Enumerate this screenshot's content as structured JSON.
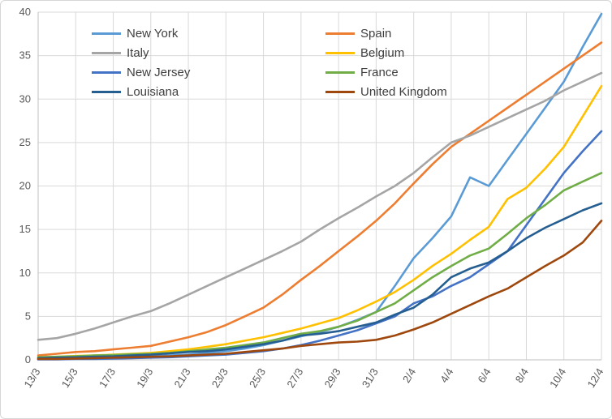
{
  "chart_data": {
    "type": "line",
    "title": "",
    "xlabel": "",
    "ylabel": "",
    "ylim": [
      0,
      40
    ],
    "y_ticks": [
      0,
      5,
      10,
      15,
      20,
      25,
      30,
      35,
      40
    ],
    "grid": true,
    "legend_position": "top-inside-two-columns",
    "x": [
      "13/3",
      "14/3",
      "15/3",
      "16/3",
      "17/3",
      "18/3",
      "19/3",
      "20/3",
      "21/3",
      "22/3",
      "23/3",
      "24/3",
      "25/3",
      "26/3",
      "27/3",
      "28/3",
      "29/3",
      "30/3",
      "31/3",
      "1/4",
      "2/4",
      "3/4",
      "4/4",
      "5/4",
      "6/4",
      "7/4",
      "8/4",
      "9/4",
      "10/4",
      "11/4",
      "12/4"
    ],
    "x_tick_every": 2,
    "x_tick_labels": [
      "13/3",
      "15/3",
      "17/3",
      "19/3",
      "21/3",
      "23/3",
      "25/3",
      "27/3",
      "29/3",
      "31/3",
      "2/4",
      "4/4",
      "6/4",
      "8/4",
      "10/4",
      "12/4"
    ],
    "series": [
      {
        "name": "New York",
        "color": "#5B9BD5",
        "values": [
          0.1,
          0.1,
          0.2,
          0.2,
          0.3,
          0.3,
          0.4,
          0.5,
          0.6,
          0.8,
          1.0,
          1.3,
          1.7,
          2.2,
          2.7,
          3.2,
          3.8,
          4.6,
          5.5,
          8.5,
          11.7,
          14.0,
          16.5,
          21.0,
          20.0,
          23.0,
          26.0,
          29.0,
          32.0,
          36.0,
          39.8
        ]
      },
      {
        "name": "Spain",
        "color": "#ED7D31",
        "values": [
          0.5,
          0.7,
          0.9,
          1.0,
          1.2,
          1.4,
          1.6,
          2.1,
          2.6,
          3.2,
          4.0,
          5.0,
          6.0,
          7.5,
          9.2,
          10.8,
          12.5,
          14.2,
          16.0,
          18.0,
          20.3,
          22.5,
          24.5,
          26.0,
          27.5,
          29.0,
          30.5,
          32.0,
          33.5,
          35.0,
          36.5
        ]
      },
      {
        "name": "Italy",
        "color": "#A5A5A5",
        "values": [
          2.3,
          2.5,
          3.0,
          3.6,
          4.3,
          5.0,
          5.6,
          6.5,
          7.5,
          8.5,
          9.5,
          10.5,
          11.5,
          12.5,
          13.6,
          15.0,
          16.3,
          17.5,
          18.8,
          20.0,
          21.5,
          23.3,
          25.0,
          25.8,
          26.8,
          27.8,
          28.8,
          29.8,
          31.0,
          32.0,
          33.0
        ]
      },
      {
        "name": "Belgium",
        "color": "#FFC000",
        "values": [
          0.3,
          0.35,
          0.45,
          0.5,
          0.6,
          0.7,
          0.8,
          1.0,
          1.2,
          1.5,
          1.8,
          2.2,
          2.6,
          3.1,
          3.6,
          4.2,
          4.8,
          5.7,
          6.7,
          7.8,
          9.2,
          10.8,
          12.2,
          13.8,
          15.3,
          18.5,
          19.8,
          22.0,
          24.5,
          28.0,
          31.5
        ]
      },
      {
        "name": "New Jersey",
        "color": "#4472C4",
        "values": [
          0.05,
          0.05,
          0.1,
          0.1,
          0.15,
          0.2,
          0.25,
          0.3,
          0.4,
          0.5,
          0.6,
          0.8,
          1.0,
          1.3,
          1.7,
          2.2,
          2.8,
          3.4,
          4.2,
          5.0,
          6.5,
          7.3,
          8.5,
          9.5,
          11.0,
          12.5,
          15.5,
          18.5,
          21.5,
          24.0,
          26.3
        ]
      },
      {
        "name": "France",
        "color": "#70AD47",
        "values": [
          0.3,
          0.35,
          0.4,
          0.5,
          0.55,
          0.65,
          0.7,
          0.8,
          1.0,
          1.2,
          1.4,
          1.7,
          2.0,
          2.5,
          3.0,
          3.3,
          3.8,
          4.5,
          5.5,
          6.5,
          8.0,
          9.5,
          10.8,
          12.0,
          12.8,
          14.5,
          16.3,
          17.8,
          19.5,
          20.5,
          21.5
        ]
      },
      {
        "name": "Louisiana",
        "color": "#255E91",
        "values": [
          0.2,
          0.25,
          0.3,
          0.35,
          0.4,
          0.5,
          0.6,
          0.75,
          0.9,
          1.0,
          1.2,
          1.5,
          1.8,
          2.2,
          2.8,
          3.0,
          3.3,
          3.8,
          4.3,
          5.2,
          6.0,
          7.5,
          9.5,
          10.5,
          11.2,
          12.5,
          14.0,
          15.2,
          16.2,
          17.2,
          18.0
        ]
      },
      {
        "name": "United Kingdom",
        "color": "#9E480E",
        "values": [
          0.1,
          0.1,
          0.15,
          0.2,
          0.25,
          0.3,
          0.35,
          0.4,
          0.5,
          0.6,
          0.7,
          0.9,
          1.1,
          1.3,
          1.6,
          1.8,
          2.0,
          2.1,
          2.3,
          2.8,
          3.5,
          4.3,
          5.3,
          6.3,
          7.3,
          8.2,
          9.5,
          10.8,
          12.0,
          13.5,
          16.0
        ]
      }
    ],
    "legend_order": [
      "New York",
      "Italy",
      "New Jersey",
      "Louisiana",
      "Spain",
      "Belgium",
      "France",
      "United Kingdom"
    ]
  },
  "colors": {
    "gridline": "#d9d9d9",
    "axis_line": "#bfbfbf",
    "tick_label": "#595959",
    "legend_text": "#404040",
    "background": "#ffffff"
  }
}
